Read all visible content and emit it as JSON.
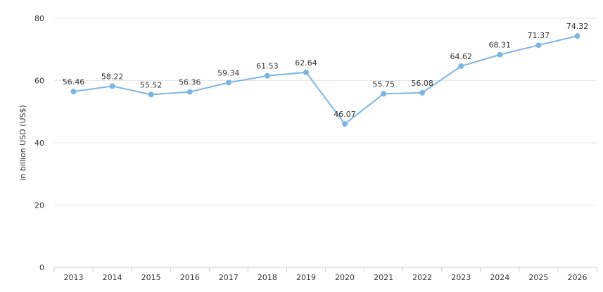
{
  "chart_data": {
    "type": "line",
    "title": "",
    "xlabel": "",
    "ylabel": "in billion USD (US$)",
    "ylim": [
      0,
      80
    ],
    "yticks": [
      0,
      20,
      40,
      60,
      80
    ],
    "grid": true,
    "legend": "none",
    "categories": [
      "2013",
      "2014",
      "2015",
      "2016",
      "2017",
      "2018",
      "2019",
      "2020",
      "2021",
      "2022",
      "2023",
      "2024",
      "2025",
      "2026"
    ],
    "series": [
      {
        "values": [
          56.46,
          58.22,
          55.52,
          56.36,
          59.34,
          61.53,
          62.64,
          46.07,
          55.75,
          56.08,
          64.62,
          68.31,
          71.37,
          74.32
        ],
        "labels": [
          "56.46",
          "58.22",
          "55.52",
          "56.36",
          "59.34",
          "61.53",
          "62.64",
          "46.07",
          "55.75",
          "56.08",
          "64.62",
          "68.31",
          "71.37",
          "74.32"
        ],
        "color": "#7cb5e2"
      }
    ]
  }
}
